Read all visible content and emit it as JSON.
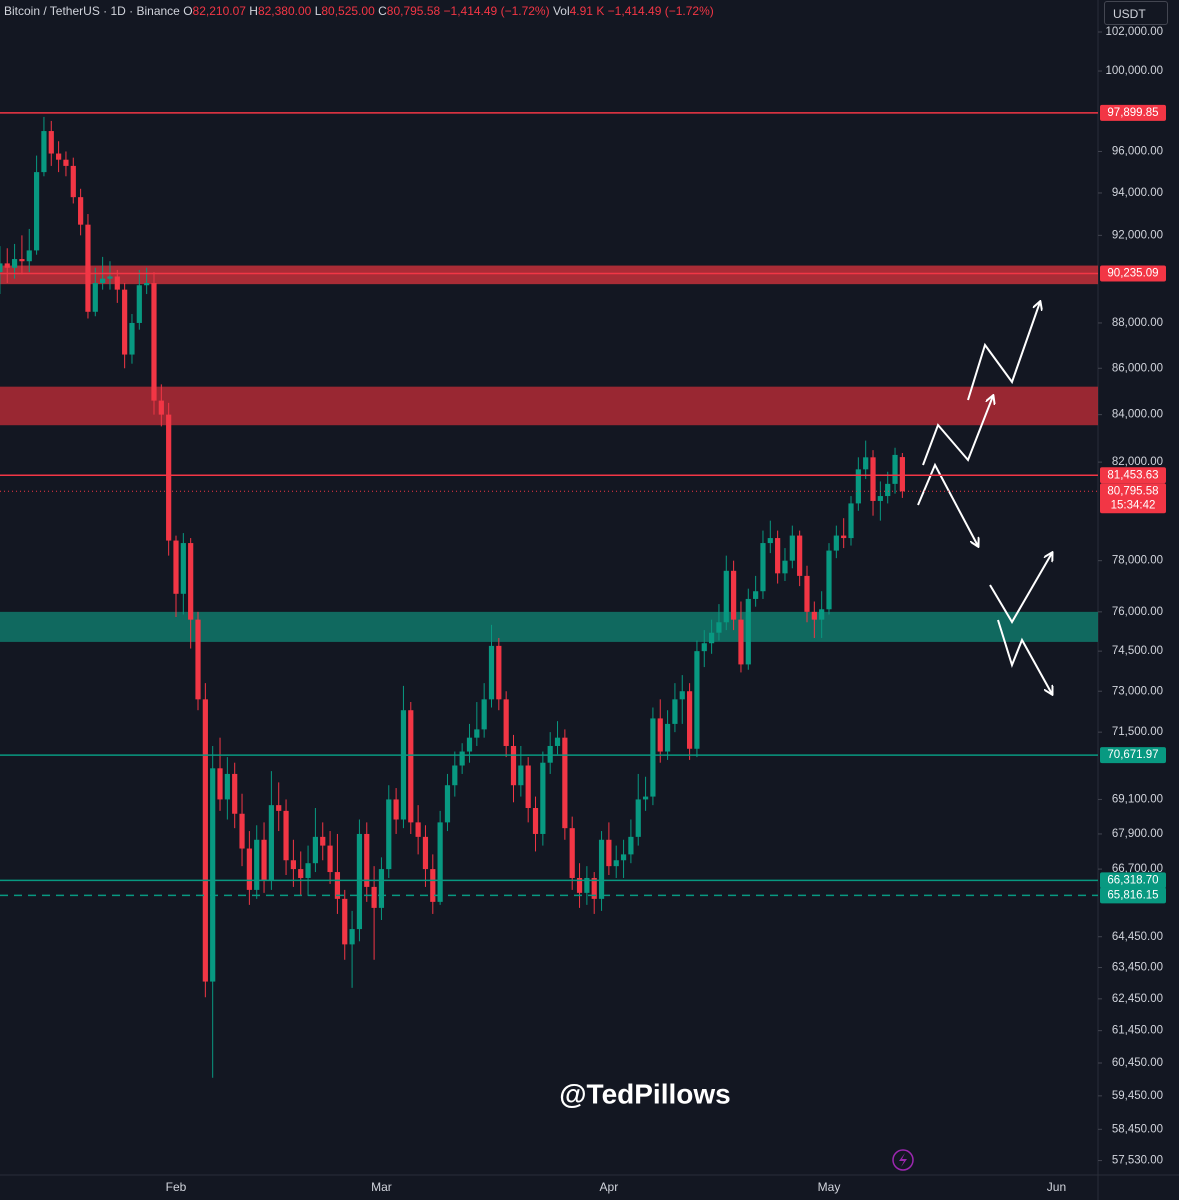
{
  "header": {
    "symbol": "Bitcoin / TetherUS · 1D · Binance",
    "o_label": "O",
    "o": "82,210.07",
    "h_label": "H",
    "h": "82,380.00",
    "l_label": "L",
    "l": "80,525.00",
    "c_label": "C",
    "c": "80,795.58",
    "change": "−1,414.49 (−1.72%)",
    "vol_label": "Vol",
    "vol": "4.91 K",
    "vol_change": "−1,414.49 (−1.72%)"
  },
  "currency": "USDT",
  "watermark": "@TedPillows",
  "chart_data": {
    "type": "candlestick",
    "log_scale": true,
    "up_color": "#089981",
    "down_color": "#f23645",
    "ylim": [
      57110,
      103670
    ],
    "yticks": [
      {
        "value": 102000,
        "label": "102,000.00"
      },
      {
        "value": 100000,
        "label": "100,000.00"
      },
      {
        "value": 96000,
        "label": "96,000.00"
      },
      {
        "value": 94000,
        "label": "94,000.00"
      },
      {
        "value": 92000,
        "label": "92,000.00"
      },
      {
        "value": 88000,
        "label": "88,000.00"
      },
      {
        "value": 86000,
        "label": "86,000.00"
      },
      {
        "value": 84000,
        "label": "84,000.00"
      },
      {
        "value": 82000,
        "label": "82,000.00"
      },
      {
        "value": 78000,
        "label": "78,000.00"
      },
      {
        "value": 76000,
        "label": "76,000.00"
      },
      {
        "value": 74500,
        "label": "74,500.00"
      },
      {
        "value": 73000,
        "label": "73,000.00"
      },
      {
        "value": 71500,
        "label": "71,500.00"
      },
      {
        "value": 69100,
        "label": "69,100.00"
      },
      {
        "value": 67900,
        "label": "67,900.00"
      },
      {
        "value": 66700,
        "label": "66,700.00"
      },
      {
        "value": 64450,
        "label": "64,450.00"
      },
      {
        "value": 63450,
        "label": "63,450.00"
      },
      {
        "value": 62450,
        "label": "62,450.00"
      },
      {
        "value": 61450,
        "label": "61,450.00"
      },
      {
        "value": 60450,
        "label": "60,450.00"
      },
      {
        "value": 59450,
        "label": "59,450.00"
      },
      {
        "value": 58450,
        "label": "58,450.00"
      },
      {
        "value": 57530,
        "label": "57,530.00"
      }
    ],
    "categories": [
      null,
      null,
      null,
      null,
      null,
      null,
      null,
      null,
      null,
      null,
      null,
      null,
      null,
      null,
      null,
      null,
      null,
      null,
      null,
      null,
      null,
      null,
      null,
      null,
      "Feb",
      null,
      null,
      null,
      null,
      null,
      null,
      null,
      null,
      null,
      null,
      null,
      null,
      null,
      null,
      null,
      null,
      null,
      null,
      null,
      null,
      null,
      null,
      null,
      null,
      null,
      null,
      null,
      "Mar",
      null,
      null,
      null,
      null,
      null,
      null,
      null,
      null,
      null,
      null,
      null,
      null,
      null,
      null,
      null,
      null,
      null,
      null,
      null,
      null,
      null,
      null,
      null,
      null,
      null,
      null,
      null,
      null,
      null,
      null,
      "Apr",
      null,
      null,
      null,
      null,
      null,
      null,
      null,
      null,
      null,
      null,
      null,
      null,
      null,
      null,
      null,
      null,
      null,
      null,
      null,
      null,
      null,
      null,
      null,
      null,
      null,
      null,
      null,
      null,
      null,
      "May",
      null,
      null,
      null,
      null,
      null,
      null,
      null,
      null,
      null,
      null,
      null,
      null,
      null,
      null,
      null,
      null,
      null,
      null,
      null,
      null,
      null,
      null,
      null,
      null,
      null,
      null,
      null,
      null,
      null,
      null,
      "Jun",
      null,
      null,
      null,
      null,
      null
    ],
    "open": [
      90300,
      90700,
      90500,
      90900,
      90800,
      91300,
      95000,
      97000,
      95900,
      95600,
      95300,
      93800,
      92500,
      88500,
      89800,
      90000,
      90100,
      89500,
      86600,
      88000,
      89700,
      89800,
      84600,
      84000,
      78800,
      76700,
      78700,
      75700,
      72700,
      63000,
      70200,
      69100,
      70000,
      68600,
      67400,
      66000,
      67700,
      66300,
      68900,
      68700,
      67000,
      66700,
      66400,
      66900,
      67800,
      67500,
      66600,
      65700,
      64200,
      64700,
      67900,
      66100,
      65400,
      66700,
      69100,
      68400,
      72300,
      68300,
      67800,
      66700,
      65600,
      68300,
      69600,
      70300,
      70800,
      71300,
      71600,
      72700,
      74700,
      72700,
      71000,
      69600,
      70300,
      68800,
      67900,
      70400,
      71000,
      71300,
      68100,
      66400,
      65900,
      66400,
      65700,
      67700,
      66800,
      67000,
      67200,
      67800,
      69100,
      69200,
      72000,
      70800,
      71800,
      72700,
      73000,
      70900,
      74500,
      74800,
      75200,
      75600,
      77600,
      75700,
      74000,
      76500,
      76800,
      78700,
      78900,
      77500,
      78000,
      79000,
      77400,
      76000,
      75700,
      76100,
      78400,
      79000,
      78900,
      80300,
      81700,
      82200,
      80400,
      80600,
      81100,
      82210.07,
      null,
      null,
      null,
      null,
      null,
      null,
      null,
      null,
      null,
      null,
      null,
      null,
      null,
      null,
      null,
      null,
      null,
      null,
      null,
      null,
      null,
      null,
      null,
      null,
      null,
      null
    ],
    "high": [
      91500,
      91400,
      91600,
      92000,
      92300,
      95800,
      97700,
      97500,
      96500,
      96000,
      95700,
      94200,
      93000,
      90500,
      91000,
      90800,
      90400,
      89800,
      88400,
      90400,
      90500,
      90300,
      85300,
      84500,
      79000,
      79100,
      78900,
      76000,
      73300,
      71000,
      71300,
      70600,
      70400,
      69300,
      68000,
      68200,
      68300,
      70100,
      69700,
      69100,
      67700,
      67300,
      67500,
      68800,
      68300,
      68000,
      67900,
      66000,
      65300,
      68400,
      68300,
      66800,
      67100,
      69600,
      69500,
      73200,
      72600,
      68900,
      68200,
      67200,
      68700,
      70000,
      70800,
      71100,
      71800,
      72600,
      73300,
      75500,
      75000,
      73000,
      71400,
      71000,
      70600,
      69200,
      70800,
      71500,
      71900,
      71600,
      68500,
      66900,
      66800,
      66600,
      68000,
      68300,
      67500,
      67700,
      68400,
      70000,
      69900,
      72400,
      72700,
      72300,
      73300,
      73600,
      73300,
      74900,
      75300,
      75700,
      76300,
      78200,
      78000,
      76400,
      76900,
      77400,
      79200,
      79600,
      79200,
      78500,
      79400,
      79200,
      77800,
      76400,
      76800,
      78700,
      79400,
      79700,
      80600,
      82200,
      82900,
      82500,
      81200,
      81600,
      82600,
      82380,
      null,
      null,
      null,
      null,
      null,
      null,
      null,
      null,
      null,
      null,
      null,
      null,
      null,
      null,
      null,
      null,
      null,
      null,
      null,
      null,
      null,
      null,
      null,
      null,
      null,
      null
    ],
    "low": [
      89300,
      89800,
      90000,
      90200,
      90300,
      91100,
      94800,
      95300,
      95000,
      94800,
      93500,
      92000,
      88200,
      88300,
      89500,
      89500,
      88900,
      86000,
      86200,
      87700,
      89300,
      84000,
      83500,
      78200,
      75800,
      75900,
      74600,
      72300,
      62500,
      60000,
      68700,
      68400,
      68100,
      66800,
      65500,
      65700,
      65900,
      66000,
      68000,
      66500,
      66100,
      65800,
      65800,
      66600,
      67000,
      66200,
      65200,
      63700,
      62800,
      64300,
      65600,
      63700,
      65000,
      66400,
      67900,
      68100,
      67900,
      67200,
      66100,
      65200,
      65500,
      68000,
      69200,
      70000,
      70400,
      71000,
      71300,
      72400,
      72300,
      70600,
      69000,
      69200,
      68300,
      67300,
      67500,
      70000,
      70700,
      67700,
      66000,
      65400,
      65500,
      65200,
      65300,
      66500,
      66400,
      66400,
      66900,
      67500,
      68700,
      68900,
      70400,
      70500,
      71500,
      71800,
      70500,
      70600,
      73900,
      74400,
      74900,
      75300,
      75300,
      73700,
      73800,
      76200,
      76500,
      78300,
      77100,
      77200,
      77700,
      77000,
      75600,
      75000,
      75000,
      75900,
      78100,
      78500,
      78600,
      80000,
      81300,
      79800,
      79600,
      80300,
      80700,
      80525,
      null,
      null,
      null,
      null,
      null,
      null,
      null,
      null,
      null,
      null,
      null,
      null,
      null,
      null,
      null,
      null,
      null,
      null,
      null,
      null,
      null,
      null,
      null,
      null,
      null,
      null
    ],
    "close": [
      90700,
      90500,
      90900,
      90800,
      91300,
      95000,
      97000,
      95900,
      95600,
      95300,
      93800,
      92500,
      88500,
      89800,
      90000,
      90100,
      89500,
      86600,
      88000,
      89700,
      89800,
      84600,
      84000,
      78800,
      76700,
      78700,
      75700,
      72700,
      63000,
      70200,
      69100,
      70000,
      68600,
      67400,
      66000,
      67700,
      66300,
      68900,
      68700,
      67000,
      66700,
      66400,
      66900,
      67800,
      67500,
      66600,
      65700,
      64200,
      64700,
      67900,
      66100,
      65400,
      66700,
      69100,
      68400,
      72300,
      68300,
      67800,
      66700,
      65600,
      68300,
      69600,
      70300,
      70800,
      71300,
      71600,
      72700,
      74700,
      72700,
      71000,
      69600,
      70300,
      68800,
      67900,
      70400,
      71000,
      71300,
      68100,
      66400,
      65900,
      66400,
      65700,
      67700,
      66800,
      67000,
      67200,
      67800,
      69100,
      69200,
      72000,
      70800,
      71800,
      72700,
      73000,
      70900,
      74500,
      74800,
      75200,
      75600,
      77600,
      75700,
      74000,
      76500,
      76800,
      78700,
      78900,
      77500,
      78000,
      79000,
      77400,
      76000,
      75700,
      76100,
      78400,
      79000,
      78900,
      80300,
      81700,
      82200,
      80400,
      80600,
      81100,
      82300,
      80795.58,
      null,
      null,
      null,
      null,
      null,
      null,
      null,
      null,
      null,
      null,
      null,
      null,
      null,
      null,
      null,
      null,
      null,
      null,
      null,
      null,
      null,
      null,
      null,
      null,
      null,
      null
    ],
    "zones": [
      {
        "from": 89750,
        "to": 90600,
        "color": "#c4303a"
      },
      {
        "from": 83550,
        "to": 85200,
        "color": "#b22a35"
      },
      {
        "from": 74850,
        "to": 76000,
        "color": "#11786a"
      }
    ],
    "levels": [
      {
        "value": 97899.85,
        "label": "97,899.85",
        "color": "#f23645",
        "style": "solid"
      },
      {
        "value": 90235.09,
        "label": "90,235.09",
        "color": "#f23645",
        "style": "solid"
      },
      {
        "value": 81453.63,
        "label": "81,453.63",
        "color": "#f23645",
        "style": "solid"
      },
      {
        "value": 70671.97,
        "label": "70,671.97",
        "color": "#089981",
        "style": "solid"
      },
      {
        "value": 66318.7,
        "label": "66,318.70",
        "color": "#089981",
        "style": "solid"
      },
      {
        "value": 65816.15,
        "label": "65,816.15",
        "color": "#089981",
        "style": "dashed"
      }
    ],
    "last_price": {
      "value": 80795.58,
      "label": "80,795.58",
      "countdown": "15:34:42",
      "color": "#f23645"
    }
  }
}
